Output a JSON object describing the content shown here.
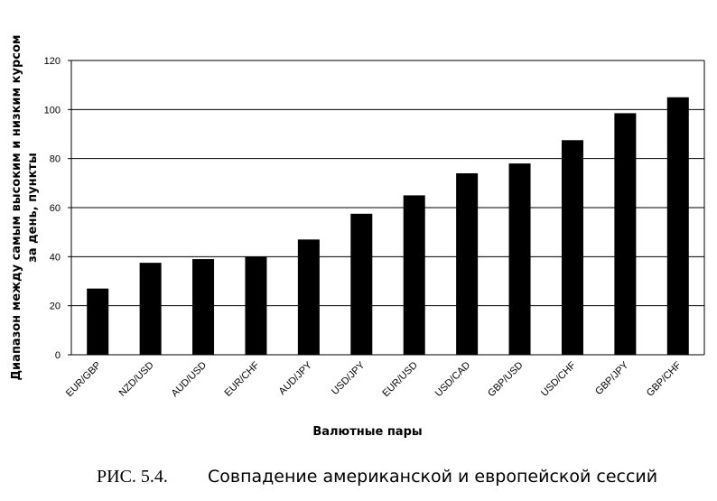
{
  "chart_data": {
    "type": "bar",
    "categories": [
      "EUR/GBP",
      "NZD/USD",
      "AUD/USD",
      "EUR/CHF",
      "AUD/JPY",
      "USD/JPY",
      "EUR/USD",
      "USD/CAD",
      "GBP/USD",
      "USD/CHF",
      "GBP/JPY",
      "GBP/CHF"
    ],
    "values": [
      27,
      37.5,
      39,
      40,
      47,
      57.5,
      65,
      74,
      78,
      87.5,
      98.5,
      105
    ],
    "xlabel": "Валютные пары",
    "ylabel_line1": "Диапазон между самым высоким и низким курсом",
    "ylabel_line2": "за день, пункты",
    "ylim": [
      0,
      120
    ],
    "yticks": [
      0,
      20,
      40,
      60,
      80,
      100,
      120
    ],
    "grid": true,
    "bar_color": "#000000"
  },
  "caption": {
    "label": "РИС. 5.4.",
    "text": "Совпадение американской и европейской сессий"
  }
}
